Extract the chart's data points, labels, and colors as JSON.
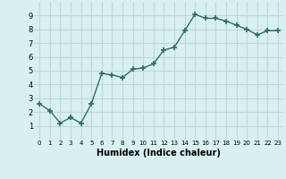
{
  "x": [
    0,
    1,
    2,
    3,
    4,
    5,
    6,
    7,
    8,
    9,
    10,
    11,
    12,
    13,
    14,
    15,
    16,
    17,
    18,
    19,
    20,
    21,
    22,
    23
  ],
  "y": [
    2.6,
    2.1,
    1.2,
    1.6,
    1.2,
    2.6,
    4.8,
    4.7,
    4.5,
    5.1,
    5.2,
    5.5,
    6.5,
    6.7,
    7.9,
    9.1,
    8.8,
    8.8,
    8.6,
    8.3,
    8.0,
    7.6,
    7.9,
    7.9
  ],
  "xlabel": "Humidex (Indice chaleur)",
  "ylim": [
    0,
    10
  ],
  "xlim": [
    -0.5,
    23.5
  ],
  "yticks": [
    1,
    2,
    3,
    4,
    5,
    6,
    7,
    8,
    9
  ],
  "xticks": [
    0,
    1,
    2,
    3,
    4,
    5,
    6,
    7,
    8,
    9,
    10,
    11,
    12,
    13,
    14,
    15,
    16,
    17,
    18,
    19,
    20,
    21,
    22,
    23
  ],
  "line_color": "#2e6e5e",
  "marker": "+",
  "marker_size": 4,
  "marker_lw": 1.2,
  "line_width": 1.0,
  "bg_color": "#d8f0f0",
  "grid_color": "#c0d8d8",
  "xlabel_fontsize": 7,
  "tick_fontsize": 5,
  "ytick_fontsize": 6
}
